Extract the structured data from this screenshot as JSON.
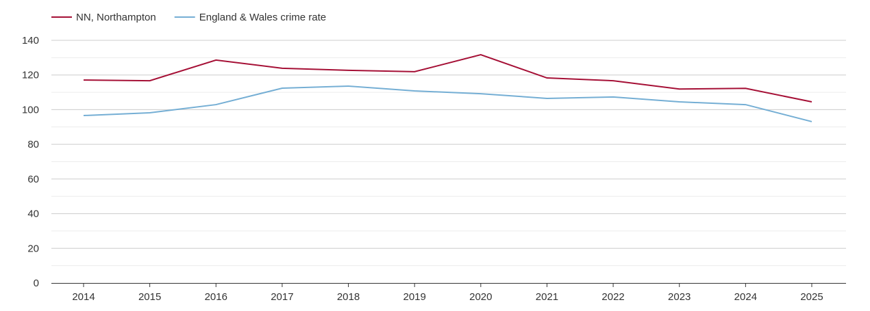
{
  "chart_data": {
    "type": "line",
    "title": "",
    "xlabel": "",
    "ylabel": "",
    "x": [
      "2014",
      "2015",
      "2016",
      "2017",
      "2018",
      "2019",
      "2020",
      "2021",
      "2022",
      "2023",
      "2024",
      "2025"
    ],
    "ylim": [
      0,
      140
    ],
    "yticks": [
      0,
      20,
      40,
      60,
      80,
      100,
      120,
      140
    ],
    "grid": true,
    "legend_position": "top-left",
    "series": [
      {
        "name": "NN, Northampton",
        "color": "#a50f35",
        "values": [
          117.1,
          116.7,
          128.6,
          123.9,
          122.7,
          121.9,
          131.7,
          118.3,
          116.7,
          111.9,
          112.3,
          104.5
        ]
      },
      {
        "name": "England & Wales crime rate",
        "color": "#74aed4",
        "values": [
          96.6,
          98.2,
          102.9,
          112.4,
          113.6,
          110.8,
          109.2,
          106.5,
          107.3,
          104.5,
          102.9,
          93.1
        ]
      }
    ]
  }
}
